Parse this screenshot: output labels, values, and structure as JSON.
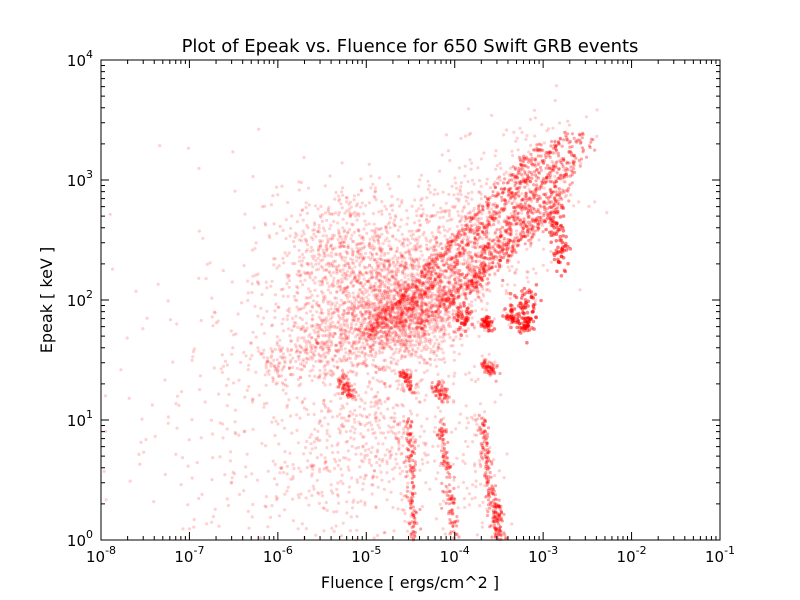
{
  "chart_data": {
    "type": "scatter",
    "title": "Plot of Epeak vs. Fluence for 650 Swift GRB events",
    "xlabel": "Fluence [ ergs/cm^2 ]",
    "ylabel": "Epeak [ keV ]",
    "xscale": "log",
    "yscale": "log",
    "xlim": [
      1e-08,
      0.1
    ],
    "ylim": [
      1,
      10000
    ],
    "x_ticks": [
      {
        "value": 1e-08,
        "base": "10",
        "exp": "-8"
      },
      {
        "value": 1e-07,
        "base": "10",
        "exp": "-7"
      },
      {
        "value": 1e-06,
        "base": "10",
        "exp": "-6"
      },
      {
        "value": 1e-05,
        "base": "10",
        "exp": "-5"
      },
      {
        "value": 0.0001,
        "base": "10",
        "exp": "-4"
      },
      {
        "value": 0.001,
        "base": "10",
        "exp": "-3"
      },
      {
        "value": 0.01,
        "base": "10",
        "exp": "-2"
      },
      {
        "value": 0.1,
        "base": "10",
        "exp": "-1"
      }
    ],
    "y_ticks": [
      {
        "value": 1,
        "base": "10",
        "exp": "0"
      },
      {
        "value": 10,
        "base": "10",
        "exp": "1"
      },
      {
        "value": 100,
        "base": "10",
        "exp": "2"
      },
      {
        "value": 1000,
        "base": "10",
        "exp": "3"
      },
      {
        "value": 10000,
        "base": "10",
        "exp": "4"
      }
    ],
    "grid": false,
    "marker_color": "#ff0000",
    "series": [
      {
        "clusters": [
          {
            "x": 3e-05,
            "y": 80,
            "sx": 0.35,
            "sy": 0.22,
            "n": 900
          },
          {
            "x": 1.5e-05,
            "y": 60,
            "sx": 0.3,
            "sy": 0.15,
            "n": 500
          },
          {
            "x": 8e-06,
            "y": 250,
            "sx": 0.35,
            "sy": 0.3,
            "n": 500
          },
          {
            "x": 3e-06,
            "y": 150,
            "sx": 0.35,
            "sy": 0.35,
            "n": 350
          },
          {
            "x": 6e-05,
            "y": 200,
            "sx": 0.35,
            "sy": 0.3,
            "n": 500
          },
          {
            "x": 0.0002,
            "y": 400,
            "sx": 0.35,
            "sy": 0.3,
            "n": 300
          },
          {
            "x": 0.0008,
            "y": 900,
            "sx": 0.3,
            "sy": 0.3,
            "n": 150
          },
          {
            "x": 1e-05,
            "y": 10,
            "sx": 0.3,
            "sy": 0.4,
            "n": 250
          },
          {
            "x": 3e-05,
            "y": 5,
            "sx": 0.3,
            "sy": 0.35,
            "n": 150
          },
          {
            "x": 0.0002,
            "y": 5,
            "sx": 0.15,
            "sy": 0.4,
            "n": 80
          },
          {
            "x": 1e-06,
            "y": 30,
            "sx": 0.1,
            "sy": 0.08,
            "n": 60
          },
          {
            "x": 4e-06,
            "y": 3,
            "sx": 0.2,
            "sy": 0.3,
            "n": 80
          },
          {
            "x": 3e-06,
            "y": 40,
            "sx": 0.2,
            "sy": 0.15,
            "n": 200
          },
          {
            "x": 1e-06,
            "y": 10,
            "sx": 0.9,
            "sy": 0.8,
            "n": 500
          }
        ],
        "streaks": [
          {
            "x0": 1e-05,
            "y0": 50,
            "x1": 0.001,
            "y1": 2000,
            "n": 300
          },
          {
            "x0": 2e-05,
            "y0": 60,
            "x1": 0.002,
            "y1": 2500,
            "n": 300
          },
          {
            "x0": 4e-05,
            "y0": 60,
            "x1": 0.003,
            "y1": 2500,
            "n": 250
          },
          {
            "x0": 7e-05,
            "y0": 80,
            "x1": 0.0035,
            "y1": 2000,
            "n": 200
          },
          {
            "x0": 0.0001,
            "y0": 100,
            "x1": 0.002,
            "y1": 900,
            "n": 150
          },
          {
            "x0": 0.00015,
            "y0": 120,
            "x1": 0.0015,
            "y1": 600,
            "n": 120
          },
          {
            "x0": 5e-06,
            "y0": 22,
            "x1": 7e-06,
            "y1": 16,
            "n": 60
          },
          {
            "x0": 2.5e-05,
            "y0": 25,
            "x1": 3.5e-05,
            "y1": 18,
            "n": 60
          },
          {
            "x0": 6e-05,
            "y0": 20,
            "x1": 8e-05,
            "y1": 15,
            "n": 60
          },
          {
            "x0": 0.00022,
            "y0": 29,
            "x1": 0.00028,
            "y1": 25,
            "n": 60
          },
          {
            "x0": 0.0003,
            "y0": 2,
            "x1": 0.00033,
            "y1": 1,
            "n": 60
          },
          {
            "x0": 0.0002,
            "y0": 10,
            "x1": 0.0003,
            "y1": 1,
            "n": 150
          },
          {
            "x0": 7e-05,
            "y0": 10,
            "x1": 0.0001,
            "y1": 1,
            "n": 120
          },
          {
            "x0": 3e-05,
            "y0": 10,
            "x1": 3.5e-05,
            "y1": 1,
            "n": 120
          }
        ],
        "blobs": [
          {
            "x": 0.00065,
            "y": 65,
            "sx": 0.05,
            "sy": 0.05,
            "n": 60
          },
          {
            "x": 0.00045,
            "y": 73,
            "sx": 0.04,
            "sy": 0.04,
            "n": 40
          },
          {
            "x": 0.00023,
            "y": 63,
            "sx": 0.04,
            "sy": 0.04,
            "n": 40
          },
          {
            "x": 0.00013,
            "y": 70,
            "sx": 0.05,
            "sy": 0.05,
            "n": 40
          },
          {
            "x": 0.00065,
            "y": 100,
            "sx": 0.06,
            "sy": 0.06,
            "n": 40
          },
          {
            "x": 0.0016,
            "y": 250,
            "sx": 0.05,
            "sy": 0.08,
            "n": 40
          },
          {
            "x": 0.0014,
            "y": 420,
            "sx": 0.05,
            "sy": 0.08,
            "n": 40
          }
        ]
      }
    ]
  }
}
